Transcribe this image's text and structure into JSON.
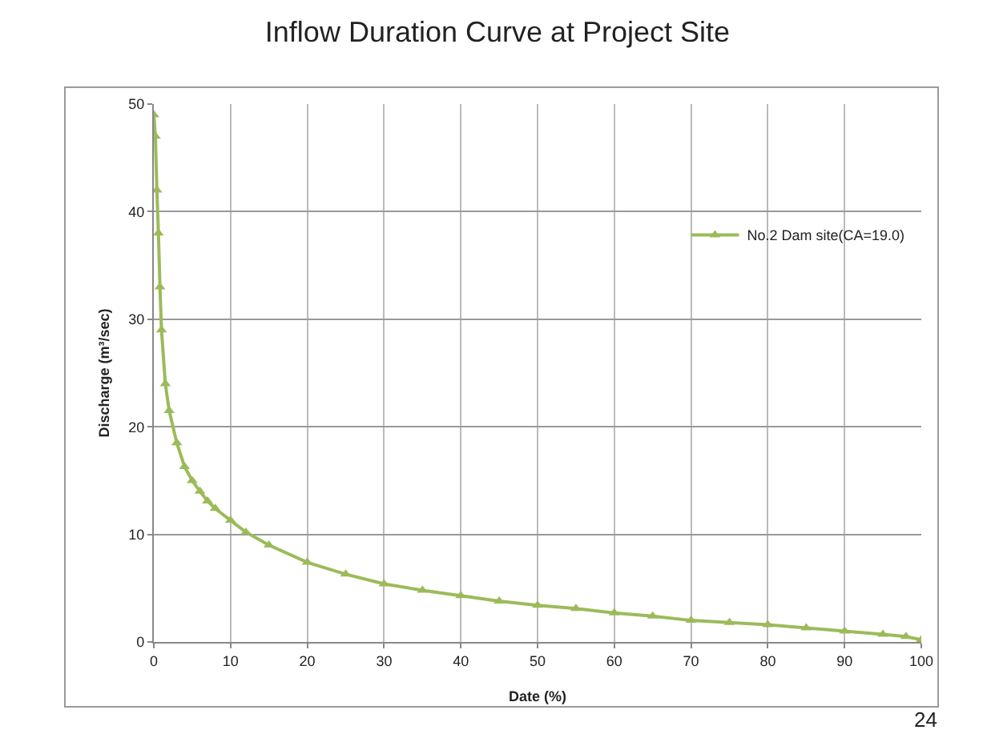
{
  "chart_data": {
    "type": "line",
    "title": "Inflow Duration Curve at Project Site",
    "xlabel": "Date (%)",
    "ylabel": "Discharge (m³/sec)",
    "x": [
      0,
      0.2,
      0.4,
      0.6,
      0.8,
      1,
      1.5,
      2,
      3,
      4,
      5,
      6,
      7,
      8,
      10,
      12,
      15,
      20,
      25,
      30,
      35,
      40,
      45,
      50,
      55,
      60,
      65,
      70,
      75,
      80,
      85,
      90,
      95,
      98,
      100
    ],
    "series": [
      {
        "name": "No.2 Dam site(CA=19.0)",
        "color": "#9bbb59",
        "values": [
          49,
          47,
          42,
          38,
          33,
          29,
          24,
          21.5,
          18.5,
          16.3,
          15,
          14,
          13.1,
          12.4,
          11.3,
          10.2,
          9,
          7.4,
          6.3,
          5.4,
          4.8,
          4.3,
          3.8,
          3.4,
          3.1,
          2.7,
          2.4,
          2.0,
          1.8,
          1.6,
          1.3,
          1.0,
          0.7,
          0.5,
          0.2
        ]
      }
    ],
    "xlim": [
      0,
      100
    ],
    "xticks": [
      0,
      10,
      20,
      30,
      40,
      50,
      60,
      70,
      80,
      90,
      100
    ],
    "ylim": [
      0,
      50
    ],
    "yticks": [
      0,
      10,
      20,
      30,
      40,
      50
    ],
    "grid": true,
    "legend": "top right",
    "marker": "triangle",
    "line_style": "solid",
    "annotations": [
      "24"
    ]
  }
}
